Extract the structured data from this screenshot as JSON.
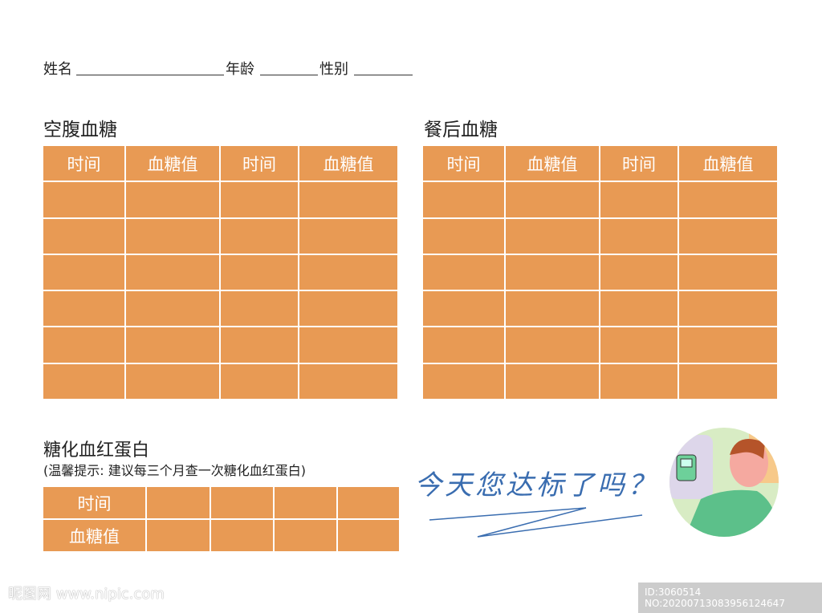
{
  "header": {
    "name_label": "姓名",
    "age_label": "年龄",
    "gender_label": "性别"
  },
  "fasting": {
    "title": "空腹血糖",
    "headers": [
      "时间",
      "血糖值",
      "时间",
      "血糖值"
    ],
    "rows": 6
  },
  "postmeal": {
    "title": "餐后血糖",
    "headers": [
      "时间",
      "血糖值",
      "时间",
      "血糖值"
    ],
    "rows": 6
  },
  "hba1c": {
    "title": "糖化血红蛋白",
    "note": "(温馨提示: 建议每三个月查一次糖化血红蛋白)",
    "row_labels": [
      "时间",
      "血糖值"
    ],
    "columns": 4
  },
  "slogan": "今天您达标了吗？",
  "watermark": {
    "site": "昵图网 www.nipic.com",
    "id": "ID:3060514 NO:20200713083956124647"
  },
  "colors": {
    "cell": "#E89A54",
    "slogan": "#3A6DB0"
  }
}
